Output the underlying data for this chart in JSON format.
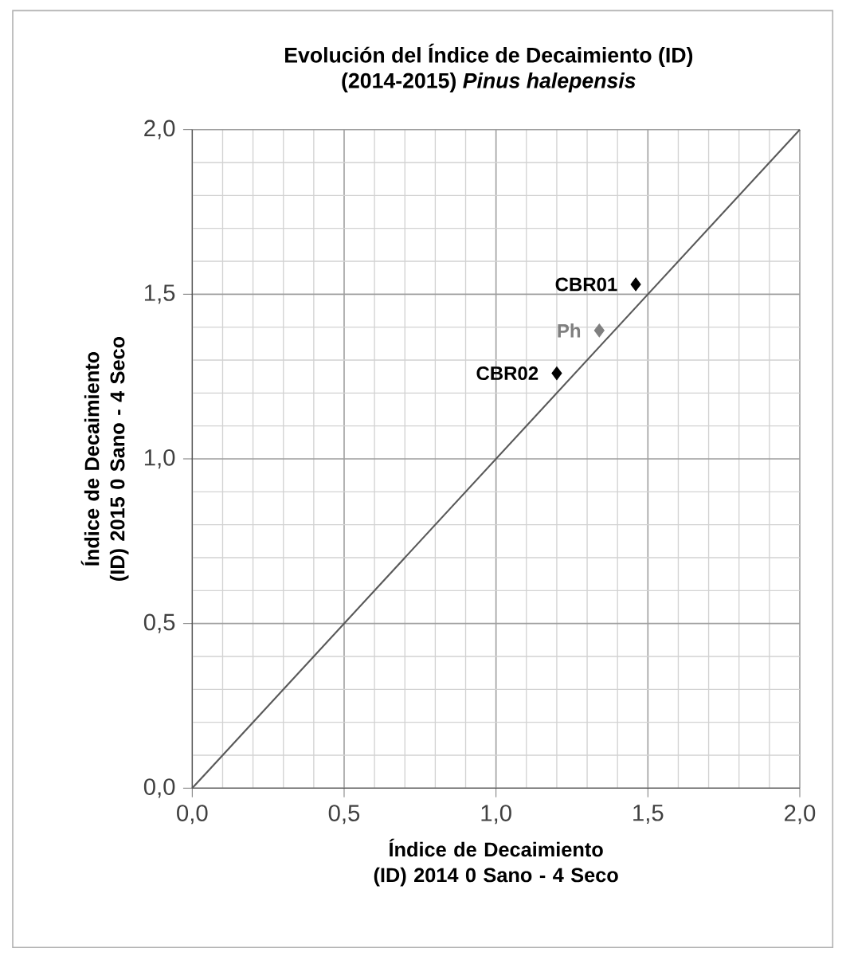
{
  "chart_data": {
    "type": "scatter",
    "title": "Evolución del Índice de Decaimiento (ID)",
    "subtitle": "(2014-2015) *Pinus halepensis*",
    "xlabel": "Índice de Decaimiento (ID) 2014 0 Sano - 4 Seco",
    "ylabel": "Índice de Decaimiento (ID) 2015 0 Sano - 4 Seco",
    "series": [
      {
        "name": "CBR01",
        "color": "#000000",
        "x": [
          1.46
        ],
        "values": [
          1.53
        ],
        "marker": "diamond"
      },
      {
        "name": "Ph",
        "color": "#7f7f7f",
        "x": [
          1.34
        ],
        "values": [
          1.39
        ],
        "marker": "diamond"
      },
      {
        "name": "CBR02",
        "color": "#000000",
        "x": [
          1.2
        ],
        "values": [
          1.26
        ],
        "marker": "diamond"
      },
      {
        "type": "line",
        "color": "#595959",
        "x": [
          0,
          2
        ],
        "values": [
          0,
          2
        ],
        "marker": "none"
      }
    ],
    "xlim": [
      0,
      2
    ],
    "ylim": [
      0,
      2
    ],
    "xticks": [
      {
        "value": 0,
        "label": "0,0"
      },
      {
        "value": 0.5,
        "label": "0,5"
      },
      {
        "value": 1,
        "label": "1,0"
      },
      {
        "value": 1.5,
        "label": "1,5"
      },
      {
        "value": 2,
        "label": "2,0"
      }
    ],
    "yticks": [
      {
        "value": 0,
        "label": "0,0"
      },
      {
        "value": 0.5,
        "label": "0,5"
      },
      {
        "value": 1,
        "label": "1,0"
      },
      {
        "value": 1.5,
        "label": "1,5"
      },
      {
        "value": 2,
        "label": "2,0"
      }
    ],
    "grid": true
  }
}
